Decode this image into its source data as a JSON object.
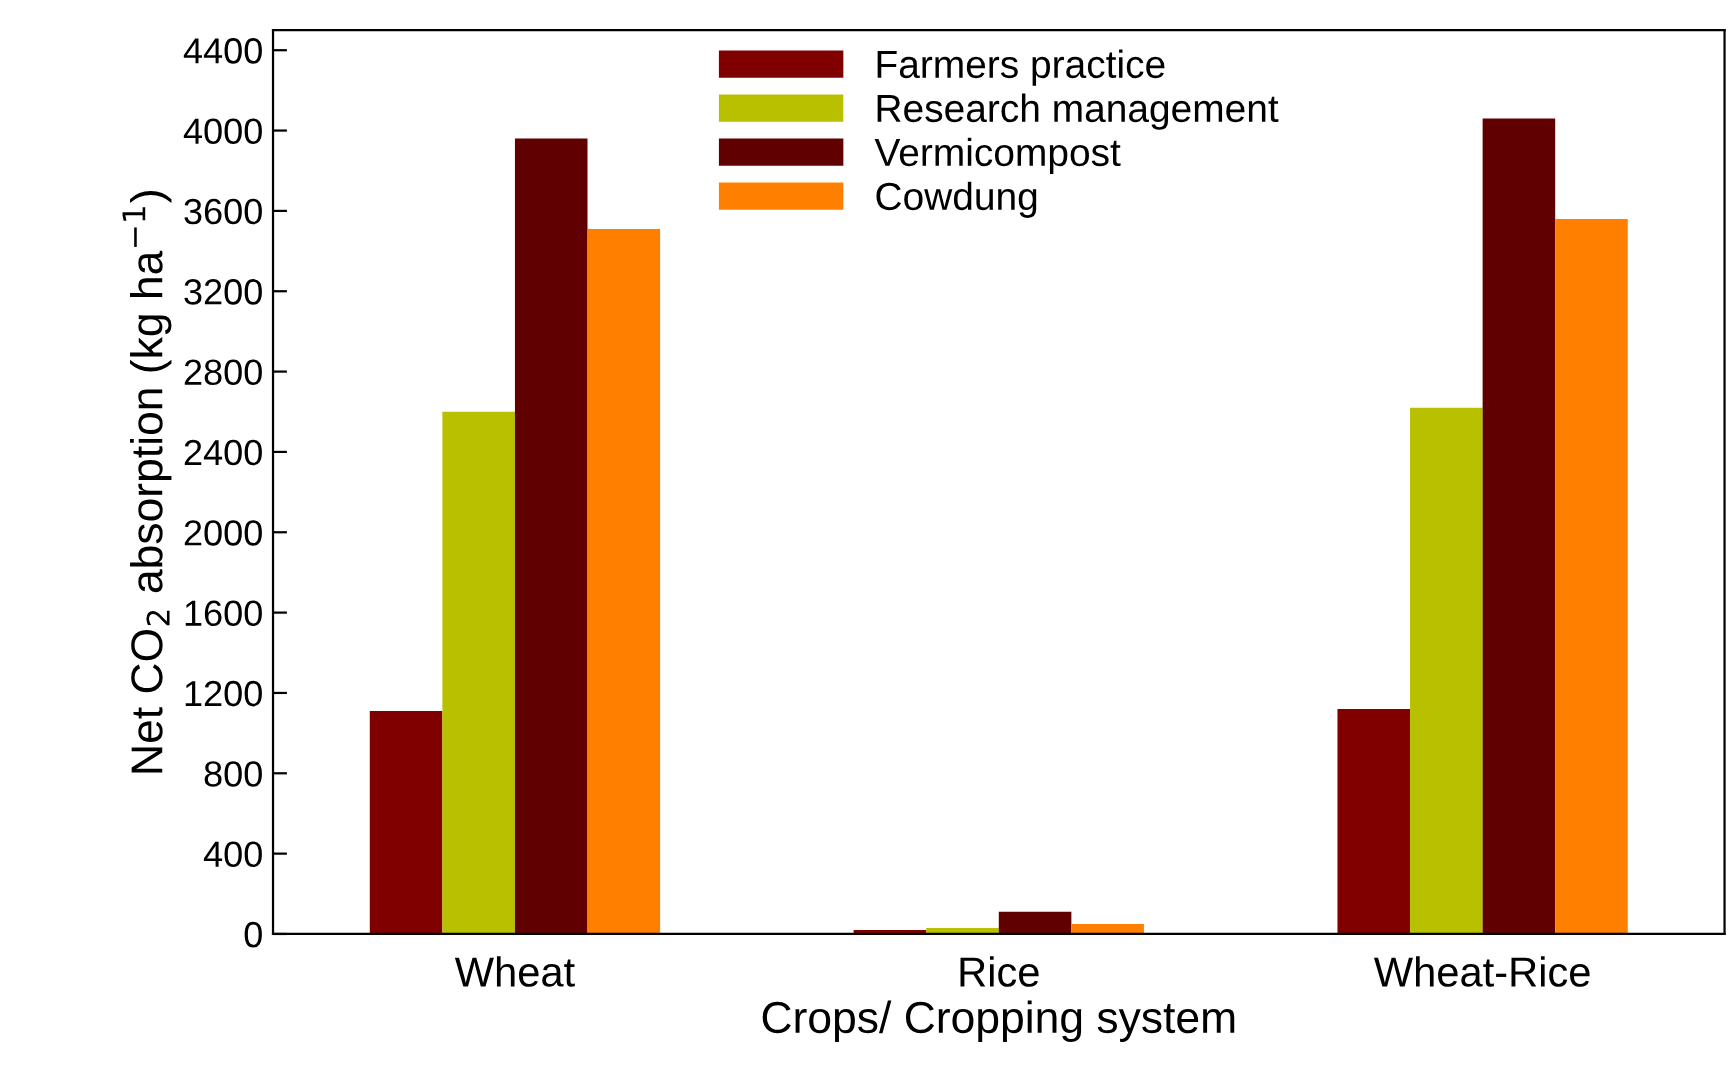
{
  "chart_data": {
    "type": "bar",
    "xlabel": "Crops/ Cropping system",
    "ylabel": "Net CO$_{2}$ absorption (kg ha$^{−1}$)",
    "categories": [
      "Wheat",
      "Rice",
      "Wheat-Rice"
    ],
    "series": [
      {
        "name": "Farmers practice",
        "color": "#800000",
        "values": [
          1110,
          20,
          1120
        ]
      },
      {
        "name": "Research management",
        "color": "#b8c000",
        "values": [
          2600,
          30,
          2620
        ]
      },
      {
        "name": "Vermicompost",
        "color": "#600000",
        "values": [
          3960,
          110,
          4060
        ]
      },
      {
        "name": "Cowdung",
        "color": "#ff8000",
        "values": [
          3510,
          50,
          3560
        ]
      }
    ],
    "ylim": [
      0,
      4500
    ],
    "yticks": [
      0,
      400,
      800,
      1200,
      1600,
      2000,
      2400,
      2800,
      3200,
      3600,
      4000,
      4400
    ],
    "grid": false,
    "legend": "top"
  }
}
